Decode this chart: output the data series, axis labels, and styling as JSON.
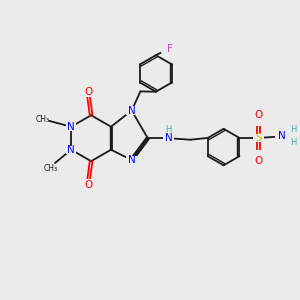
{
  "bg_color": "#ebebeb",
  "bond_color": "#1a1a1a",
  "nitrogen_color": "#0000ff",
  "oxygen_color": "#ff0000",
  "fluorine_color": "#cc44cc",
  "sulfur_color": "#cccc00",
  "nh_color": "#44aaaa",
  "figsize": [
    3.0,
    3.0
  ],
  "dpi": 100,
  "xlim": [
    0,
    10
  ],
  "ylim": [
    0,
    10
  ]
}
